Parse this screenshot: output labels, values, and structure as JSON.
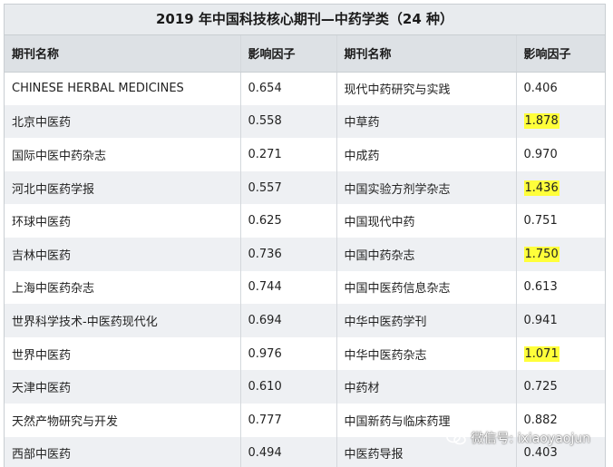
{
  "title": "2019 年中国科技核心期刊—中药学类（24 种）",
  "headers": [
    "期刊名称",
    "影响因子",
    "期刊名称",
    "影响因子"
  ],
  "rows": [
    {
      "left_name": "CHINESE HERBAL MEDICINES",
      "left_value": "0.654",
      "right_name": "现代中药研究与实践",
      "right_value": "0.406",
      "right_highlight": false
    },
    {
      "left_name": "北京中医药",
      "left_value": "0.558",
      "right_name": "中草药",
      "right_value": "1.878",
      "right_highlight": true
    },
    {
      "left_name": "国际中医中药杂志",
      "left_value": "0.271",
      "right_name": "中成药",
      "right_value": "0.970",
      "right_highlight": false
    },
    {
      "left_name": "河北中医药学报",
      "left_value": "0.557",
      "right_name": "中国实验方剂学杂志",
      "right_value": "1.436",
      "right_highlight": true
    },
    {
      "left_name": "环球中医药",
      "left_value": "0.625",
      "right_name": "中国现代中药",
      "right_value": "0.751",
      "right_highlight": false
    },
    {
      "left_name": "吉林中医药",
      "left_value": "0.736",
      "right_name": "中国中药杂志",
      "right_value": "1.750",
      "right_highlight": true
    },
    {
      "left_name": "上海中医药杂志",
      "left_value": "0.744",
      "right_name": "中国中医药信息杂志",
      "right_value": "0.613",
      "right_highlight": false
    },
    {
      "left_name": "世界科学技术-中医药现代化",
      "left_value": "0.694",
      "right_name": "中华中医药学刊",
      "right_value": "0.941",
      "right_highlight": false
    },
    {
      "left_name": "世界中医药",
      "left_value": "0.976",
      "right_name": "中华中医药杂志",
      "right_value": "1.071",
      "right_highlight": true
    },
    {
      "left_name": "天津中医药",
      "left_value": "0.610",
      "right_name": "中药材",
      "right_value": "0.725",
      "right_highlight": false
    },
    {
      "left_name": "天然产物研究与开发",
      "left_value": "0.777",
      "right_name": "中国新药与临床药理",
      "right_value": "0.882",
      "right_highlight": false
    },
    {
      "left_name": "西部中医药",
      "left_value": "0.494",
      "right_name": "中医药导报",
      "right_value": "0.403",
      "right_highlight": false
    }
  ],
  "watermark": {
    "icon": "wechat-icon",
    "text": "微信号: ixiaoyaojun"
  },
  "colors": {
    "highlight": "#ffff3a",
    "header_bg": "#dde1e5",
    "title_bg": "#e8ebee",
    "stripe": "#eef0f3"
  }
}
